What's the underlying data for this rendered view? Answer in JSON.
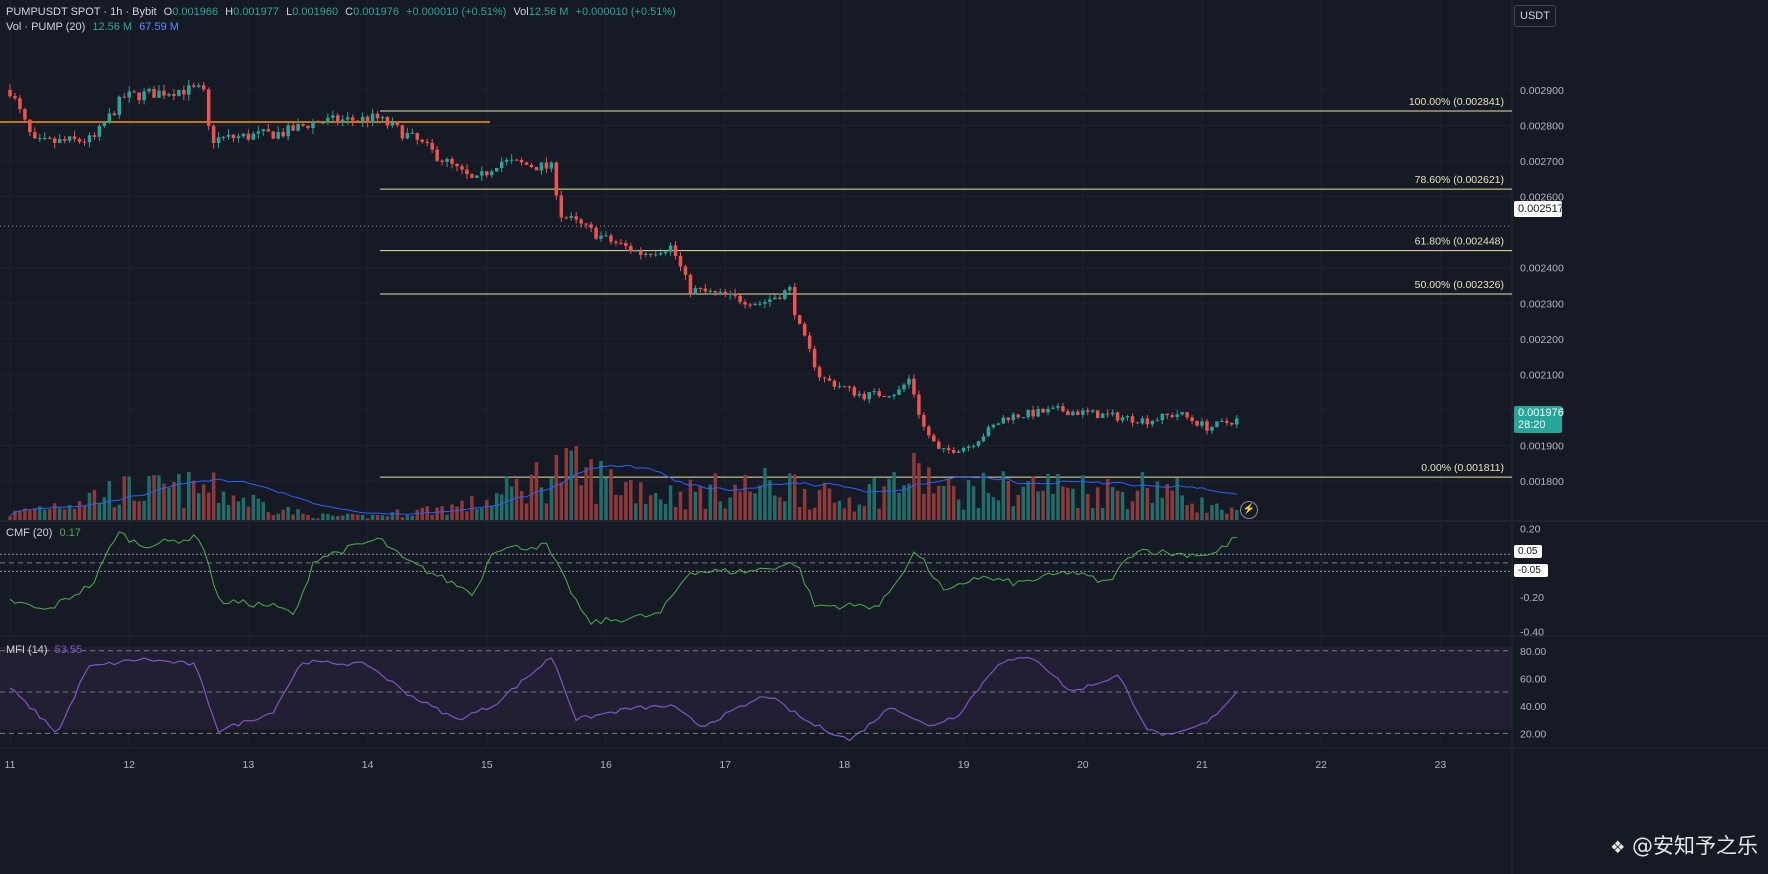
{
  "header": {
    "symbol": "PUMPUSDT SPOT · 1h · Bybit",
    "open_label": "O",
    "open": "0.001966",
    "high_label": "H",
    "high": "0.001977",
    "low_label": "L",
    "low": "0.001960",
    "close_label": "C",
    "close": "0.001976",
    "change": "+0.000010 (+0.51%)",
    "vol_label": "Vol",
    "vol": "12.56 M",
    "vol_change": "+0.000010 (+0.51%)",
    "vol_row_label": "Vol · PUMP (20)",
    "vol_value": "12.56 M",
    "vol_ma": "67.59 M"
  },
  "currency_button": "USDT",
  "price_badge": {
    "price": "0.001976",
    "countdown": "28:20"
  },
  "crosshair_badge": "0.002517",
  "colors": {
    "background": "#161a25",
    "up": "#26a69a",
    "down": "#ef5350",
    "fib": "#e8e3a0",
    "orange_line": "#f7931a",
    "vol_ma": "#2962ff",
    "cmf": "#4caf50",
    "mfi": "#7e57c2"
  },
  "icons": {
    "lightning": "lightning-icon",
    "logo": "binance-square-icon"
  },
  "watermark": "@安知予之乐",
  "chart_data": [
    {
      "type": "candlestick",
      "title": "PUMPUSDT SPOT · 1h · Bybit",
      "ylim": [
        0.00175,
        0.00295
      ],
      "y_ticks": [
        "0.002900",
        "0.002800",
        "0.002700",
        "0.002600",
        "0.002400",
        "0.002300",
        "0.002200",
        "0.002100",
        "0.002000",
        "0.001900",
        "0.001800"
      ],
      "x_ticks": [
        "11",
        "12",
        "13",
        "14",
        "15",
        "16",
        "17",
        "18",
        "19",
        "20",
        "21",
        "22",
        "23"
      ],
      "orange_level": 0.00281,
      "fib_levels": [
        {
          "label": "100.00% (0.002841)",
          "value": 0.002841
        },
        {
          "label": "78.60% (0.002621)",
          "value": 0.002621
        },
        {
          "label": "61.80% (0.002448)",
          "value": 0.002448
        },
        {
          "label": "50.00% (0.002326)",
          "value": 0.002326
        },
        {
          "label": "0.00% (0.001811)",
          "value": 0.001811
        }
      ],
      "key_points": [
        {
          "day": 11.0,
          "close": 0.0029
        },
        {
          "day": 11.2,
          "close": 0.00275
        },
        {
          "day": 11.7,
          "close": 0.00276
        },
        {
          "day": 11.95,
          "close": 0.00288
        },
        {
          "day": 12.4,
          "close": 0.0029
        },
        {
          "day": 12.62,
          "close": 0.0029
        },
        {
          "day": 12.68,
          "close": 0.00276
        },
        {
          "day": 13.3,
          "close": 0.00278
        },
        {
          "day": 13.55,
          "close": 0.00281
        },
        {
          "day": 14.08,
          "close": 0.00282
        },
        {
          "day": 14.4,
          "close": 0.00276
        },
        {
          "day": 14.9,
          "close": 0.00264
        },
        {
          "day": 15.1,
          "close": 0.0027
        },
        {
          "day": 15.55,
          "close": 0.00268
        },
        {
          "day": 15.62,
          "close": 0.00255
        },
        {
          "day": 16.0,
          "close": 0.00248
        },
        {
          "day": 16.3,
          "close": 0.00244
        },
        {
          "day": 16.55,
          "close": 0.00246
        },
        {
          "day": 16.7,
          "close": 0.00234
        },
        {
          "day": 17.3,
          "close": 0.0023
        },
        {
          "day": 17.55,
          "close": 0.00234
        },
        {
          "day": 17.6,
          "close": 0.00225
        },
        {
          "day": 17.8,
          "close": 0.00209
        },
        {
          "day": 18.15,
          "close": 0.00204
        },
        {
          "day": 18.45,
          "close": 0.00205
        },
        {
          "day": 18.55,
          "close": 0.00209
        },
        {
          "day": 18.65,
          "close": 0.00196
        },
        {
          "day": 18.8,
          "close": 0.00188
        },
        {
          "day": 19.05,
          "close": 0.0019
        },
        {
          "day": 19.35,
          "close": 0.00198
        },
        {
          "day": 19.8,
          "close": 0.002
        },
        {
          "day": 20.3,
          "close": 0.00198
        },
        {
          "day": 20.55,
          "close": 0.00197
        },
        {
          "day": 20.8,
          "close": 0.00199
        },
        {
          "day": 21.05,
          "close": 0.00195
        },
        {
          "day": 21.33,
          "close": 0.001976
        }
      ]
    },
    {
      "type": "bar",
      "title": "Vol · PUMP (20)",
      "key_points": [
        {
          "day": 11.0,
          "vol": 20
        },
        {
          "day": 11.85,
          "vol": 95
        },
        {
          "day": 12.65,
          "vol": 105
        },
        {
          "day": 13.5,
          "vol": 15
        },
        {
          "day": 14.0,
          "vol": 12
        },
        {
          "day": 14.95,
          "vol": 55
        },
        {
          "day": 15.6,
          "vol": 170
        },
        {
          "day": 16.55,
          "vol": 85
        },
        {
          "day": 17.55,
          "vol": 120
        },
        {
          "day": 17.95,
          "vol": 60
        },
        {
          "day": 18.65,
          "vol": 155
        },
        {
          "day": 18.85,
          "vol": 90
        },
        {
          "day": 19.6,
          "vol": 115
        },
        {
          "day": 20.35,
          "vol": 95
        },
        {
          "day": 20.6,
          "vol": 125
        },
        {
          "day": 21.05,
          "vol": 45
        },
        {
          "day": 21.33,
          "vol": 20
        }
      ]
    },
    {
      "type": "line",
      "title": "CMF (20)",
      "current_value": "0.17",
      "ylim": [
        -0.42,
        0.22
      ],
      "y_ticks": [
        "0.20",
        "-0.20",
        "-0.40"
      ],
      "levels": [
        "0.05",
        "-0.05"
      ],
      "key_points": [
        {
          "day": 11.0,
          "v": -0.22
        },
        {
          "day": 11.3,
          "v": -0.28
        },
        {
          "day": 11.7,
          "v": -0.12
        },
        {
          "day": 11.9,
          "v": 0.18
        },
        {
          "day": 12.1,
          "v": 0.1
        },
        {
          "day": 12.6,
          "v": 0.15
        },
        {
          "day": 12.75,
          "v": -0.22
        },
        {
          "day": 13.2,
          "v": -0.25
        },
        {
          "day": 13.4,
          "v": -0.3
        },
        {
          "day": 13.55,
          "v": 0.02
        },
        {
          "day": 14.1,
          "v": 0.14
        },
        {
          "day": 14.3,
          "v": 0.02
        },
        {
          "day": 14.9,
          "v": -0.18
        },
        {
          "day": 15.05,
          "v": 0.08
        },
        {
          "day": 15.5,
          "v": 0.1
        },
        {
          "day": 15.85,
          "v": -0.35
        },
        {
          "day": 16.45,
          "v": -0.3
        },
        {
          "day": 16.7,
          "v": -0.05
        },
        {
          "day": 17.2,
          "v": -0.05
        },
        {
          "day": 17.6,
          "v": 0.0
        },
        {
          "day": 17.75,
          "v": -0.25
        },
        {
          "day": 18.3,
          "v": -0.25
        },
        {
          "day": 18.6,
          "v": 0.07
        },
        {
          "day": 18.85,
          "v": -0.18
        },
        {
          "day": 19.1,
          "v": -0.08
        },
        {
          "day": 19.45,
          "v": -0.12
        },
        {
          "day": 19.9,
          "v": -0.05
        },
        {
          "day": 20.2,
          "v": -0.12
        },
        {
          "day": 20.45,
          "v": 0.08
        },
        {
          "day": 20.8,
          "v": 0.05
        },
        {
          "day": 21.1,
          "v": 0.05
        },
        {
          "day": 21.33,
          "v": 0.17
        }
      ]
    },
    {
      "type": "line",
      "title": "MFI (14)",
      "current_value": "53.55",
      "ylim": [
        13,
        82
      ],
      "y_ticks": [
        "80.00",
        "60.00",
        "40.00",
        "20.00"
      ],
      "levels": [
        80,
        50,
        20
      ],
      "key_points": [
        {
          "day": 11.0,
          "v": 53
        },
        {
          "day": 11.4,
          "v": 20
        },
        {
          "day": 11.65,
          "v": 68
        },
        {
          "day": 12.1,
          "v": 74
        },
        {
          "day": 12.55,
          "v": 70
        },
        {
          "day": 12.75,
          "v": 22
        },
        {
          "day": 13.2,
          "v": 35
        },
        {
          "day": 13.45,
          "v": 72
        },
        {
          "day": 14.0,
          "v": 70
        },
        {
          "day": 14.35,
          "v": 48
        },
        {
          "day": 14.75,
          "v": 30
        },
        {
          "day": 15.05,
          "v": 40
        },
        {
          "day": 15.55,
          "v": 76
        },
        {
          "day": 15.75,
          "v": 30
        },
        {
          "day": 16.2,
          "v": 38
        },
        {
          "day": 16.55,
          "v": 40
        },
        {
          "day": 16.8,
          "v": 25
        },
        {
          "day": 17.35,
          "v": 48
        },
        {
          "day": 17.7,
          "v": 28
        },
        {
          "day": 18.05,
          "v": 15
        },
        {
          "day": 18.4,
          "v": 40
        },
        {
          "day": 18.7,
          "v": 25
        },
        {
          "day": 18.95,
          "v": 33
        },
        {
          "day": 19.3,
          "v": 72
        },
        {
          "day": 19.6,
          "v": 75
        },
        {
          "day": 19.9,
          "v": 50
        },
        {
          "day": 20.3,
          "v": 62
        },
        {
          "day": 20.55,
          "v": 22
        },
        {
          "day": 20.75,
          "v": 18
        },
        {
          "day": 21.05,
          "v": 28
        },
        {
          "day": 21.33,
          "v": 53.55
        }
      ]
    }
  ]
}
